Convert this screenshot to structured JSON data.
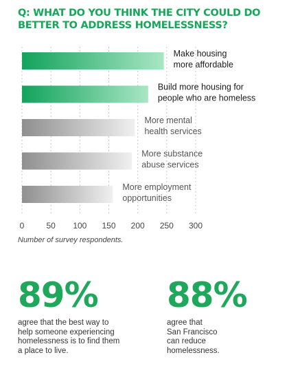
{
  "question": "Q: WHAT DO YOU THINK THE CITY COULD DO BETTER TO ADDRESS HOMELESSNESS?",
  "note": "Number of survey respondents.",
  "colors": {
    "accent": "#1fa85b",
    "bar_green": "#20b06a",
    "bar_gray": "#9e9e9e"
  },
  "chart_data": {
    "type": "bar",
    "orientation": "horizontal",
    "categories": [
      "Make housing more affordable",
      "Build more housing for people who are homeless",
      "More mental health services",
      "More substance abuse services",
      "More employment opportunities"
    ],
    "label_lines": [
      [
        "Make housing",
        "more affordable"
      ],
      [
        "Build more housing for",
        "people who are homeless"
      ],
      [
        "More mental",
        "health services"
      ],
      [
        "More substance",
        "abuse services"
      ],
      [
        "More employment",
        "opportunities"
      ]
    ],
    "values": [
      245,
      218,
      195,
      190,
      157
    ],
    "highlight": [
      true,
      true,
      false,
      false,
      false
    ],
    "xlim": [
      0,
      300
    ],
    "xticks": [
      "0",
      "50",
      "100",
      "150",
      "200",
      "250",
      "300"
    ],
    "xlabel": "Number of survey respondents.",
    "grid": true
  },
  "stats": [
    {
      "value": "89%",
      "text": "agree that the best way to\nhelp someone experiencing\nhomelessness is to find them\na place to live."
    },
    {
      "value": "88%",
      "text": "agree that\nSan Francisco\ncan reduce\nhomelessness."
    }
  ]
}
